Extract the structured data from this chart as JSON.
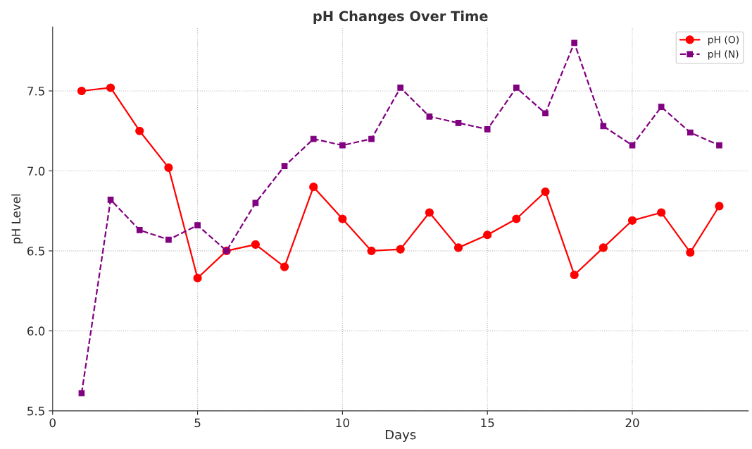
{
  "chart_data": {
    "type": "line",
    "title": "pH Changes Over Time",
    "xlabel": "Days",
    "ylabel": "pH Level",
    "x": [
      1,
      2,
      3,
      4,
      5,
      6,
      7,
      8,
      9,
      10,
      11,
      12,
      13,
      14,
      15,
      16,
      17,
      18,
      19,
      20,
      21,
      22,
      23
    ],
    "series": [
      {
        "name": "pH (O)",
        "color": "#ff0000",
        "marker": "circle",
        "line_style": "solid",
        "values": [
          7.5,
          7.52,
          7.25,
          7.02,
          6.33,
          6.5,
          6.54,
          6.4,
          6.9,
          6.7,
          6.5,
          6.51,
          6.74,
          6.52,
          6.6,
          6.7,
          6.87,
          6.35,
          6.52,
          6.69,
          6.74,
          6.49,
          6.78
        ]
      },
      {
        "name": "pH (N)",
        "color": "#800080",
        "marker": "square",
        "line_style": "dashed",
        "values": [
          5.61,
          6.82,
          6.63,
          6.57,
          6.66,
          6.5,
          6.8,
          7.03,
          7.2,
          7.16,
          7.2,
          7.52,
          7.34,
          7.3,
          7.26,
          7.52,
          7.36,
          7.8,
          7.28,
          7.16,
          7.4,
          7.24,
          7.16
        ]
      }
    ],
    "xlim": [
      0,
      24
    ],
    "xticks": [
      0,
      5,
      10,
      15,
      20
    ],
    "ylim": [
      5.5,
      7.9
    ],
    "yticks": [
      {
        "value": 5.5,
        "label": "5.5"
      },
      {
        "value": 6.0,
        "label": "6.0"
      },
      {
        "value": 6.5,
        "label": "6.5"
      },
      {
        "value": 7.0,
        "label": "7.0"
      },
      {
        "value": 7.5,
        "label": "7.5"
      }
    ],
    "grid": true,
    "legend": "top right"
  }
}
